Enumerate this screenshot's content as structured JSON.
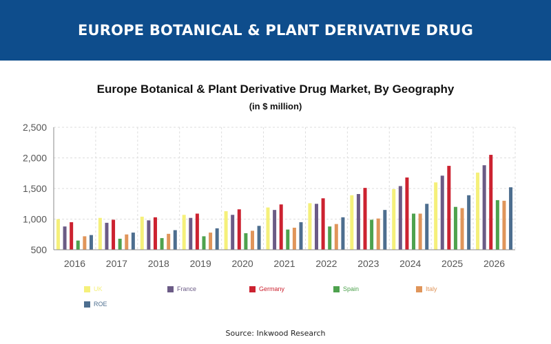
{
  "banner": {
    "title": "EUROPE BOTANICAL & PLANT DERIVATIVE DRUG"
  },
  "source": "Source: Inkwood Research",
  "chart_data": {
    "type": "bar",
    "title": "Europe Botanical & Plant Derivative Drug Market, By Geography",
    "subtitle": "(in $ million)",
    "xlabel": "",
    "ylabel": "",
    "ylim": [
      500,
      2500
    ],
    "yticks": [
      500,
      1000,
      1500,
      2000,
      2500
    ],
    "ytick_labels": [
      "500",
      "1,000",
      "1,500",
      "2,000",
      "2,500"
    ],
    "grid": true,
    "legend_position": "bottom",
    "categories": [
      "2016",
      "2017",
      "2018",
      "2019",
      "2020",
      "2021",
      "2022",
      "2023",
      "2024",
      "2025",
      "2026"
    ],
    "series": [
      {
        "name": "UK",
        "color": "#f5f07a",
        "values": [
          1000,
          1020,
          1040,
          1070,
          1130,
          1190,
          1260,
          1390,
          1490,
          1600,
          1760
        ]
      },
      {
        "name": "France",
        "color": "#6b5b86",
        "values": [
          880,
          940,
          980,
          1020,
          1070,
          1150,
          1250,
          1410,
          1540,
          1710,
          1880
        ]
      },
      {
        "name": "Germany",
        "color": "#cc2230",
        "values": [
          950,
          990,
          1030,
          1090,
          1160,
          1240,
          1340,
          1510,
          1680,
          1870,
          2050
        ]
      },
      {
        "name": "Spain",
        "color": "#4ea24e",
        "values": [
          650,
          680,
          690,
          720,
          770,
          830,
          880,
          990,
          1090,
          1200,
          1310
        ]
      },
      {
        "name": "Italy",
        "color": "#e0955a",
        "values": [
          720,
          750,
          760,
          780,
          810,
          860,
          920,
          1010,
          1090,
          1180,
          1300
        ]
      },
      {
        "name": "ROE",
        "color": "#4d6e8f",
        "values": [
          740,
          780,
          820,
          850,
          890,
          950,
          1030,
          1150,
          1250,
          1390,
          1520
        ]
      }
    ]
  }
}
